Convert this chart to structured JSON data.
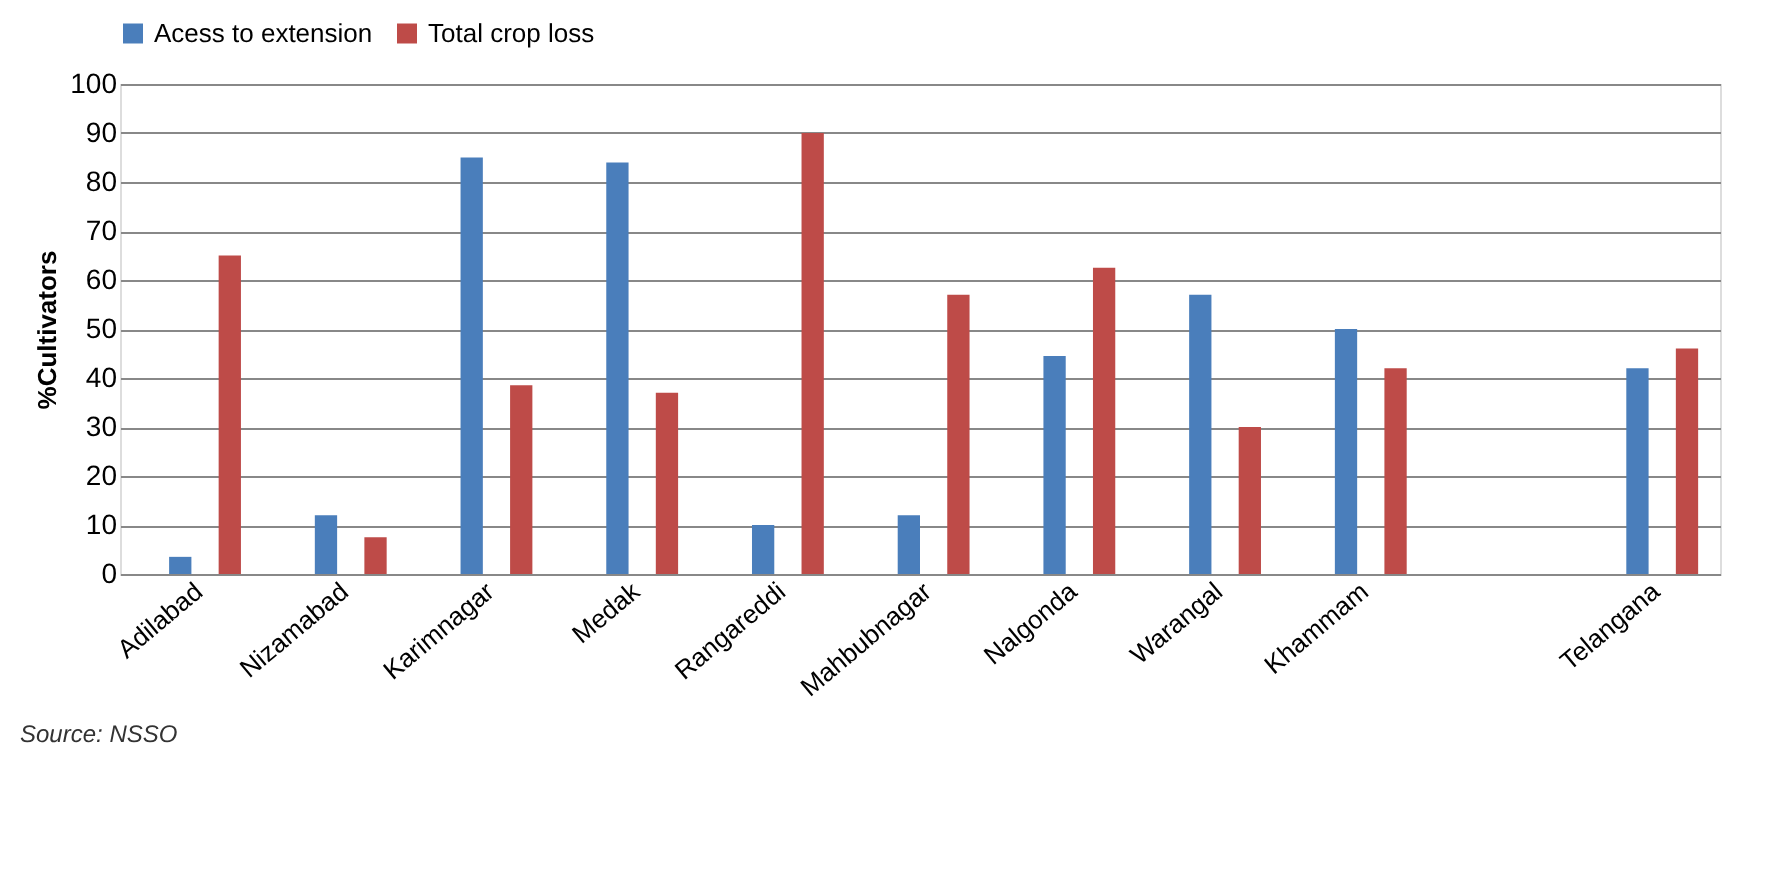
{
  "chart_data": {
    "type": "bar",
    "ylabel": "%Cultivators",
    "categories": [
      "Adilabad",
      "Nizamabad",
      "Karimnagar",
      "Medak",
      "Rangareddi",
      "Mahbubnagar",
      "Nalgonda",
      "Warangal",
      "Khammam",
      null,
      "Telangana"
    ],
    "series": [
      {
        "name": "Acess to extension",
        "color": "#4a7ebb",
        "values": [
          3.5,
          12,
          85,
          84,
          10,
          12,
          44.5,
          57,
          50,
          null,
          42
        ]
      },
      {
        "name": "Total crop loss",
        "color": "#be4b48",
        "values": [
          65,
          7.5,
          38.5,
          37,
          90,
          57,
          62.5,
          30,
          42,
          null,
          46
        ]
      }
    ],
    "ylim": [
      0,
      100
    ],
    "yticks": [
      0,
      10,
      20,
      30,
      40,
      50,
      60,
      70,
      80,
      90,
      100
    ],
    "grid": "y",
    "legend": "top",
    "annotations": [
      "Source: NSSO"
    ]
  }
}
